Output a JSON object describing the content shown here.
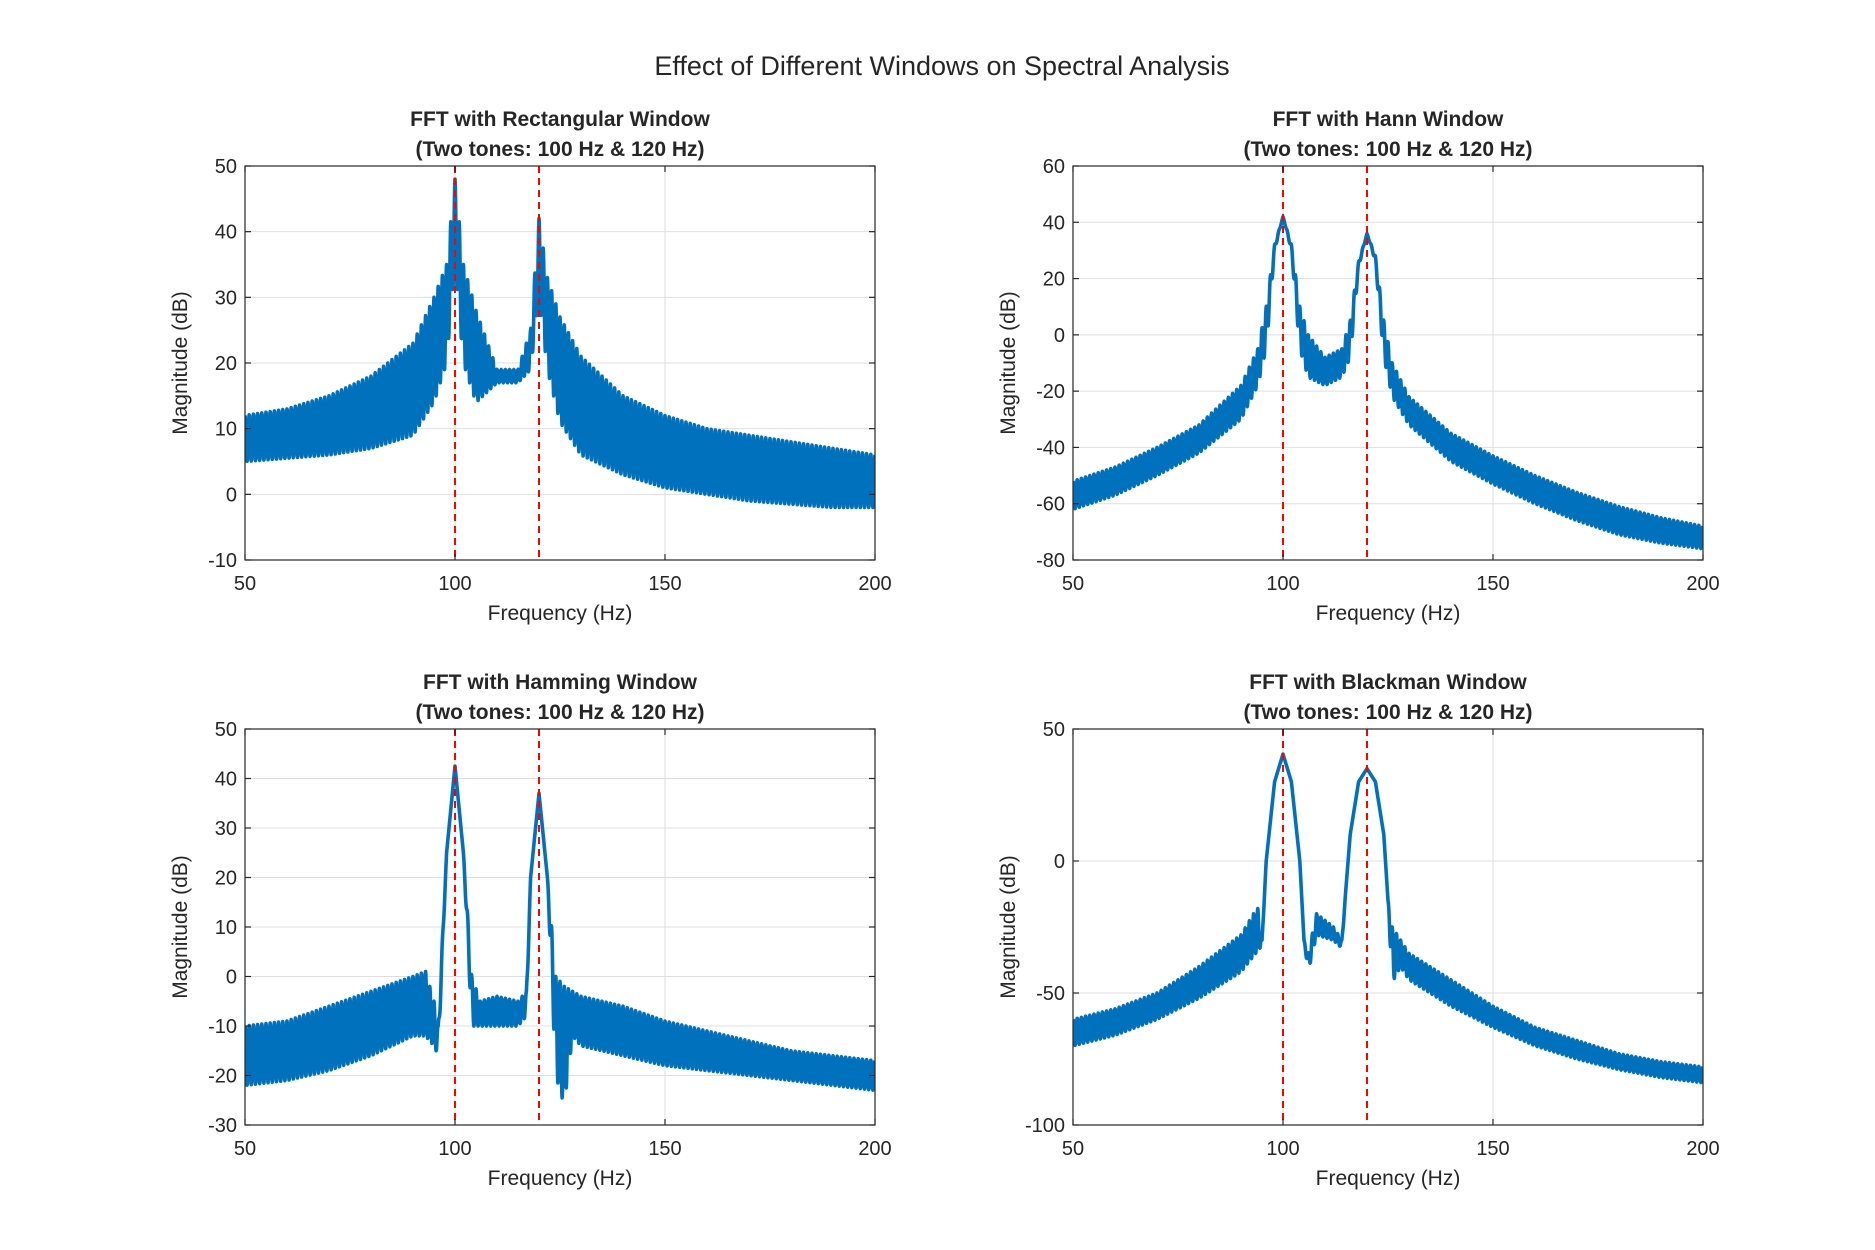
{
  "figure": {
    "title": "Effect of Different Windows on Spectral Analysis"
  },
  "colors": {
    "series": "#0072BD",
    "marker": "#FF0000",
    "grid": "#DFDFDF",
    "axis": "#262626"
  },
  "chart_data": [
    {
      "type": "line",
      "title": "FFT with Rectangular Window",
      "subtitle": "(Two tones: 100 Hz & 120 Hz)",
      "xlabel": "Frequency (Hz)",
      "ylabel": "Magnitude (dB)",
      "xlim": [
        50,
        200
      ],
      "ylim": [
        -10,
        50
      ],
      "xticks": [
        50,
        100,
        150,
        200
      ],
      "yticks": [
        -10,
        0,
        10,
        20,
        30,
        40,
        50
      ],
      "grid": true,
      "markers_x": [
        100,
        120
      ],
      "series": [
        {
          "x": [
            50,
            60,
            70,
            80,
            90,
            95,
            98,
            100,
            102,
            105,
            110,
            115,
            118,
            120,
            122,
            125,
            130,
            140,
            150,
            160,
            170,
            180,
            190,
            200
          ],
          "upper": [
            12,
            13,
            15,
            18,
            23,
            30,
            35,
            48,
            35,
            28,
            19,
            19,
            25,
            42,
            33,
            27,
            21,
            15,
            12,
            10,
            9,
            8,
            7,
            6
          ],
          "lower": [
            5,
            5.5,
            6,
            7,
            9,
            14,
            20,
            35,
            20,
            14,
            17,
            17,
            19,
            30,
            19,
            11,
            6,
            3,
            1,
            0,
            -1,
            -1.5,
            -2,
            -2
          ],
          "period": 1
        }
      ]
    },
    {
      "type": "line",
      "title": "FFT with Hann Window",
      "subtitle": "(Two tones: 100 Hz & 120 Hz)",
      "xlabel": "Frequency (Hz)",
      "ylabel": "Magnitude (dB)",
      "xlim": [
        50,
        200
      ],
      "ylim": [
        -80,
        60
      ],
      "xticks": [
        50,
        100,
        150,
        200
      ],
      "yticks": [
        -80,
        -60,
        -40,
        -20,
        0,
        20,
        40,
        60
      ],
      "grid": true,
      "markers_x": [
        100,
        120
      ],
      "series": [
        {
          "x": [
            50,
            60,
            70,
            80,
            90,
            94,
            96,
            98,
            100,
            102,
            104,
            106,
            110,
            114,
            116,
            118,
            120,
            122,
            124,
            126,
            130,
            140,
            150,
            160,
            170,
            180,
            190,
            200
          ],
          "upper": [
            -52,
            -47,
            -40,
            -32,
            -18,
            -5,
            10,
            32,
            42,
            32,
            10,
            0,
            -8,
            -5,
            5,
            26,
            36,
            28,
            5,
            -10,
            -22,
            -35,
            -43,
            -50,
            -56,
            -61,
            -65,
            -68
          ],
          "lower": [
            -62,
            -57,
            -50,
            -42,
            -30,
            -18,
            -5,
            30,
            42,
            30,
            -5,
            -15,
            -18,
            -15,
            -8,
            24,
            36,
            26,
            -8,
            -22,
            -32,
            -45,
            -53,
            -60,
            -66,
            -71,
            -74,
            -76
          ],
          "period": 1
        }
      ]
    },
    {
      "type": "line",
      "title": "FFT with Hamming Window",
      "subtitle": "(Two tones: 100 Hz & 120 Hz)",
      "xlabel": "Frequency (Hz)",
      "ylabel": "Magnitude (dB)",
      "xlim": [
        50,
        200
      ],
      "ylim": [
        -30,
        50
      ],
      "xticks": [
        50,
        100,
        150,
        200
      ],
      "yticks": [
        -30,
        -20,
        -10,
        0,
        10,
        20,
        30,
        40,
        50
      ],
      "grid": true,
      "markers_x": [
        100,
        120
      ],
      "series": [
        {
          "x": [
            50,
            60,
            70,
            80,
            90,
            93,
            95,
            96,
            98,
            100,
            102,
            104,
            106,
            110,
            115,
            117,
            118,
            120,
            122,
            124,
            126,
            128,
            130,
            140,
            150,
            160,
            170,
            180,
            190,
            200
          ],
          "upper": [
            -10,
            -9,
            -6,
            -3,
            0,
            1,
            -5,
            -10,
            25,
            42.5,
            25,
            0,
            -5,
            -4,
            -5,
            -3,
            20,
            37,
            20,
            0,
            -2,
            -3,
            -4,
            -6,
            -9,
            -11,
            -13,
            -15,
            -16,
            -17
          ],
          "lower": [
            -22,
            -21,
            -19,
            -16,
            -12,
            -12,
            -14,
            -16,
            25,
            42.5,
            25,
            -10,
            -10,
            -10,
            -10,
            -8,
            20,
            37,
            20,
            -20,
            -26,
            -12,
            -14,
            -16,
            -18,
            -19,
            -20,
            -21,
            -22,
            -23
          ],
          "period": 1
        }
      ]
    },
    {
      "type": "line",
      "title": "FFT with Blackman Window",
      "subtitle": "(Two tones: 100 Hz & 120 Hz)",
      "xlabel": "Frequency (Hz)",
      "ylabel": "Magnitude (dB)",
      "xlim": [
        50,
        200
      ],
      "ylim": [
        -100,
        50
      ],
      "xticks": [
        50,
        100,
        150,
        200
      ],
      "yticks": [
        -100,
        -50,
        0,
        50
      ],
      "grid": true,
      "markers_x": [
        100,
        120
      ],
      "series": [
        {
          "x": [
            50,
            60,
            70,
            80,
            90,
            93,
            94,
            95,
            96,
            98,
            100,
            102,
            104,
            105,
            106,
            108,
            112,
            114,
            115,
            116,
            118,
            120,
            122,
            124,
            125,
            126,
            128,
            130,
            140,
            150,
            160,
            170,
            180,
            190,
            200
          ],
          "upper": [
            -60,
            -56,
            -50,
            -40,
            -28,
            -20,
            -18,
            -30,
            0,
            30,
            40.5,
            30,
            0,
            -30,
            -35,
            -20,
            -25,
            -30,
            -10,
            10,
            30,
            35,
            30,
            10,
            -15,
            -25,
            -30,
            -35,
            -45,
            -55,
            -63,
            -68,
            -73,
            -76,
            -78
          ],
          "lower": [
            -70,
            -66,
            -60,
            -52,
            -42,
            -36,
            -34,
            -32,
            0,
            30,
            40.5,
            30,
            0,
            -30,
            -42,
            -28,
            -30,
            -33,
            -10,
            10,
            30,
            35,
            30,
            10,
            -15,
            -46,
            -40,
            -45,
            -55,
            -63,
            -70,
            -75,
            -79,
            -82,
            -84
          ],
          "period": 1
        }
      ]
    }
  ]
}
